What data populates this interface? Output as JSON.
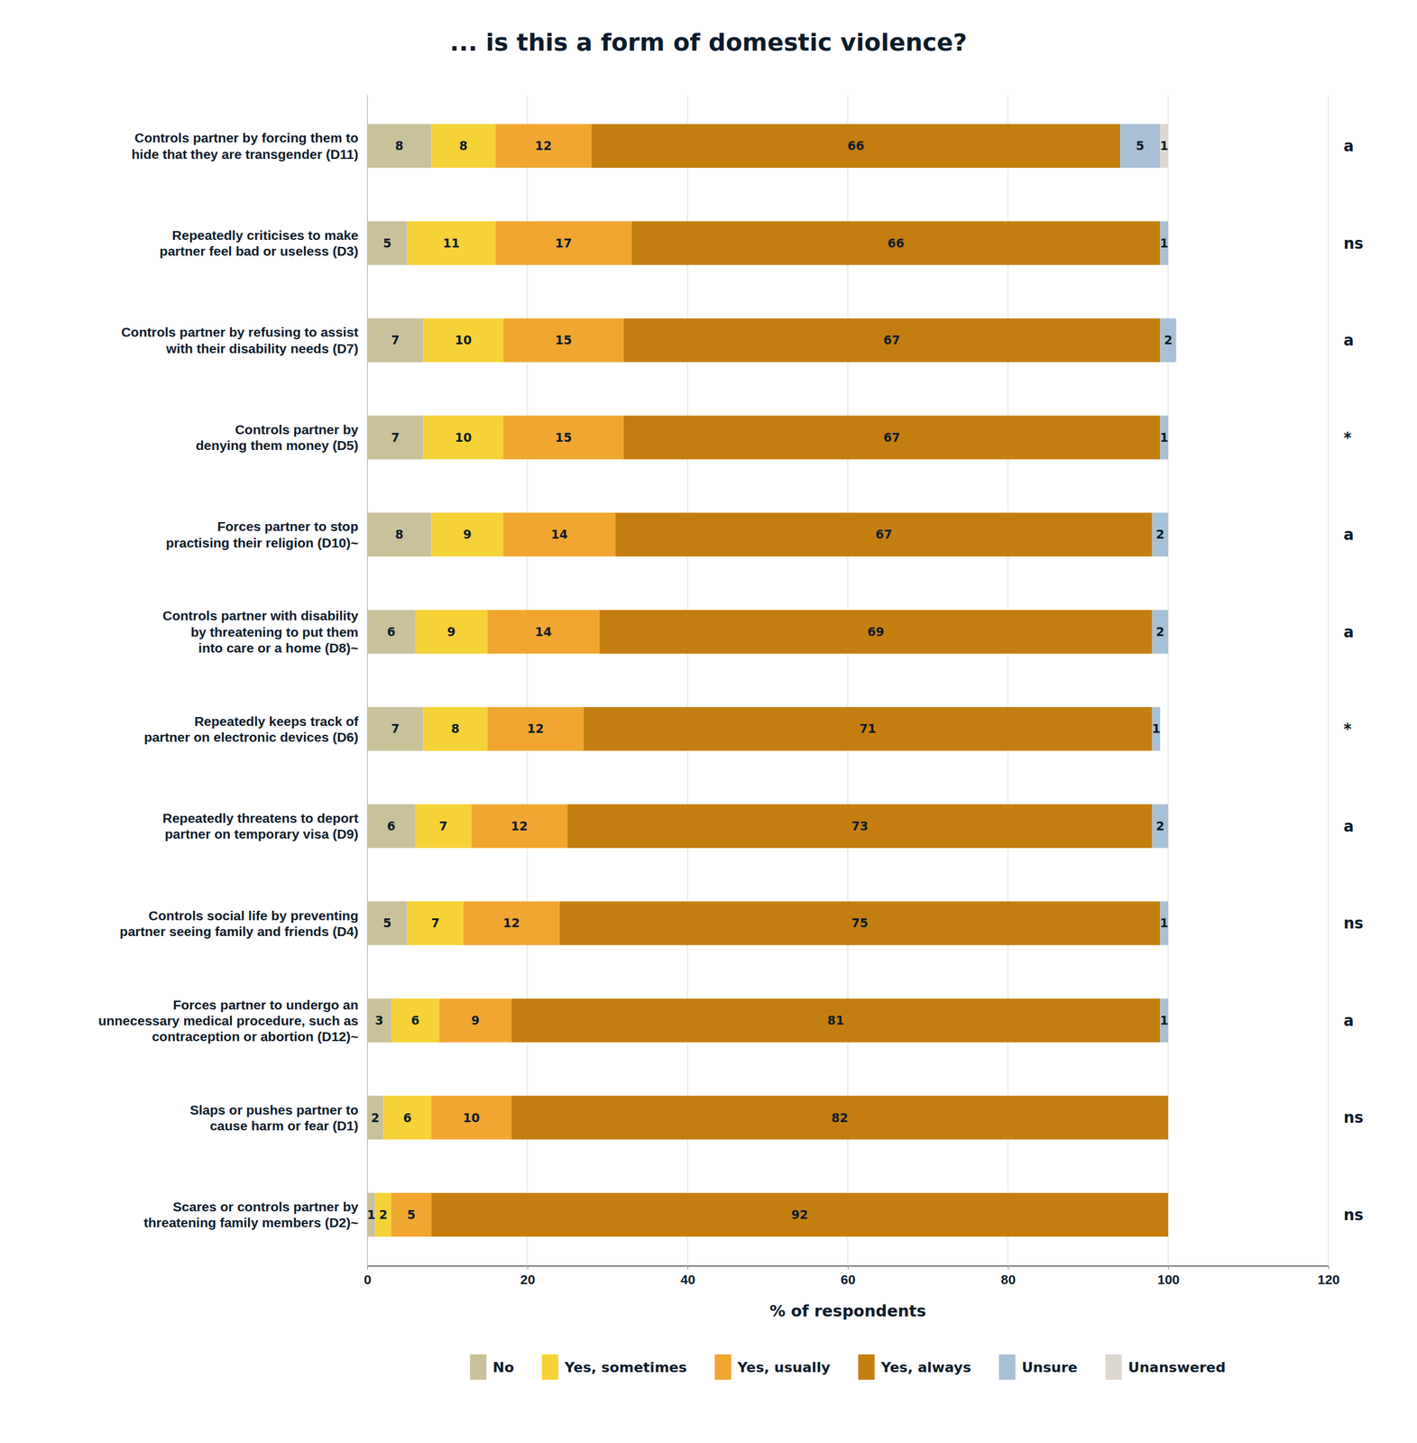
{
  "chart_data": {
    "type": "bar",
    "orientation": "horizontal",
    "stacked": true,
    "title": "... is this a form of domestic violence?",
    "xlabel": "% of respondents",
    "categories": [
      "Controls partner by forcing them to\nhide that they are transgender (D11)",
      "Repeatedly criticises to make\npartner feel bad or useless (D3)",
      "Controls partner by refusing to assist\nwith their disability needs (D7)",
      "Controls partner by\ndenying them money (D5)",
      "Forces partner to stop\npractising their religion (D10)~",
      "Controls partner with disability\nby threatening to put them\ninto care or a home (D8)~",
      "Repeatedly keeps track of\npartner on electronic devices (D6)",
      "Repeatedly threatens to deport\npartner on temporary visa (D9)",
      "Controls social life by preventing\npartner seeing family and friends  (D4)",
      "Forces partner to undergo an\nunnecessary medical procedure, such as\ncontraception or abortion (D12)~",
      "Slaps or pushes partner to\ncause harm or fear (D1)",
      "Scares or controls partner by\nthreatening family members (D2)~"
    ],
    "annotations": [
      "a",
      "ns",
      "a",
      "*",
      "a",
      "a",
      "*",
      "a",
      "ns",
      "a",
      "ns",
      "ns"
    ],
    "series": [
      {
        "name": "No",
        "color": "#c8c19a",
        "values": [
          8,
          5,
          7,
          7,
          8,
          6,
          7,
          6,
          5,
          3,
          2,
          1
        ]
      },
      {
        "name": "Yes, sometimes",
        "color": "#f5d237",
        "values": [
          8,
          11,
          10,
          10,
          9,
          9,
          8,
          7,
          7,
          6,
          6,
          2
        ]
      },
      {
        "name": "Yes, usually",
        "color": "#f0a630",
        "values": [
          12,
          17,
          15,
          15,
          14,
          14,
          12,
          12,
          12,
          9,
          10,
          5
        ]
      },
      {
        "name": "Yes, always",
        "color": "#c47e10",
        "values": [
          66,
          66,
          67,
          67,
          67,
          69,
          71,
          73,
          75,
          81,
          82,
          92
        ]
      },
      {
        "name": "Unsure",
        "color": "#a8c0d6",
        "values": [
          5,
          1,
          2,
          1,
          2,
          2,
          1,
          2,
          1,
          1,
          0,
          0
        ]
      },
      {
        "name": "Unanswered",
        "color": "#ddd8cf",
        "values": [
          1,
          0,
          0,
          0,
          0,
          0,
          0,
          0,
          0,
          0,
          0,
          0
        ]
      }
    ],
    "xlim": [
      0,
      120
    ],
    "xticks": [
      0,
      20,
      40,
      60,
      80,
      100,
      120
    ],
    "grid": true,
    "legend": "bottom",
    "data_labels": true
  }
}
